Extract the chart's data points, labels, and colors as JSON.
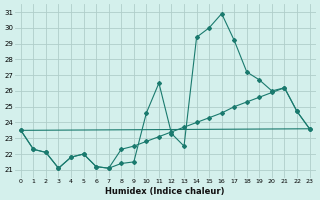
{
  "xlabel": "Humidex (Indice chaleur)",
  "background_color": "#d4f0ec",
  "grid_color": "#b0ceca",
  "line_color": "#1a7a6e",
  "xlim": [
    -0.5,
    23.5
  ],
  "ylim": [
    20.5,
    31.5
  ],
  "xticks": [
    0,
    1,
    2,
    3,
    4,
    5,
    6,
    7,
    8,
    9,
    10,
    11,
    12,
    13,
    14,
    15,
    16,
    17,
    18,
    19,
    20,
    21,
    22,
    23
  ],
  "yticks": [
    21,
    22,
    23,
    24,
    25,
    26,
    27,
    28,
    29,
    30,
    31
  ],
  "series": [
    {
      "x": [
        0,
        1,
        2,
        3,
        4,
        5,
        6,
        7,
        8,
        9,
        10,
        11,
        12,
        13,
        14,
        15,
        16,
        17,
        18,
        19,
        20,
        21,
        22,
        23
      ],
      "y": [
        23.5,
        22.3,
        22.1,
        21.1,
        21.8,
        22.0,
        21.2,
        21.1,
        21.4,
        21.5,
        24.6,
        26.5,
        23.3,
        22.5,
        29.4,
        30.0,
        30.9,
        29.2,
        27.2,
        26.7,
        26.0,
        26.2,
        24.7,
        23.6
      ],
      "has_markers": true
    },
    {
      "x": [
        0,
        1,
        2,
        3,
        4,
        5,
        6,
        7,
        8,
        9,
        10,
        11,
        12,
        13,
        14,
        15,
        16,
        17,
        18,
        19,
        20,
        21,
        22,
        23
      ],
      "y": [
        23.5,
        22.3,
        22.1,
        21.1,
        21.8,
        22.0,
        21.2,
        21.1,
        22.3,
        22.5,
        22.8,
        23.1,
        23.4,
        23.7,
        24.0,
        24.3,
        24.6,
        25.0,
        25.3,
        25.6,
        25.9,
        26.2,
        24.7,
        23.6
      ],
      "has_markers": true
    },
    {
      "x": [
        0,
        23
      ],
      "y": [
        23.5,
        23.6
      ],
      "has_markers": false
    }
  ]
}
